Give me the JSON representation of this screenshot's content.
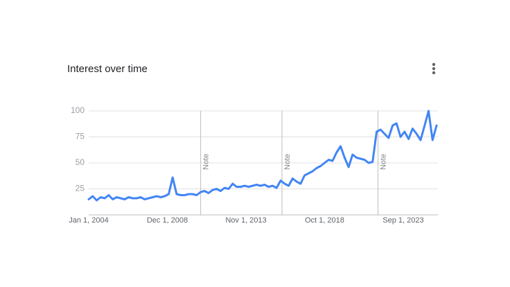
{
  "chart_data": {
    "type": "line",
    "title": "Interest over time",
    "x": [
      "2004-01-01",
      "2004-04-01",
      "2004-07-01",
      "2004-10-01",
      "2005-01-01",
      "2005-04-01",
      "2005-07-01",
      "2005-10-01",
      "2006-01-01",
      "2006-04-01",
      "2006-07-01",
      "2006-10-01",
      "2007-01-01",
      "2007-04-01",
      "2007-07-01",
      "2007-10-01",
      "2008-01-01",
      "2008-04-01",
      "2008-07-01",
      "2008-10-01",
      "2009-01-01",
      "2009-04-01",
      "2009-07-01",
      "2009-10-01",
      "2010-01-01",
      "2010-04-01",
      "2010-07-01",
      "2010-10-01",
      "2011-01-01",
      "2011-04-01",
      "2011-07-01",
      "2011-10-01",
      "2012-01-01",
      "2012-04-01",
      "2012-07-01",
      "2012-10-01",
      "2013-01-01",
      "2013-04-01",
      "2013-07-01",
      "2013-10-01",
      "2014-01-01",
      "2014-04-01",
      "2014-07-01",
      "2014-10-01",
      "2015-01-01",
      "2015-04-01",
      "2015-07-01",
      "2015-10-01",
      "2016-01-01",
      "2016-04-01",
      "2016-07-01",
      "2016-10-01",
      "2017-01-01",
      "2017-04-01",
      "2017-07-01",
      "2017-10-01",
      "2018-01-01",
      "2018-04-01",
      "2018-07-01",
      "2018-10-01",
      "2019-01-01",
      "2019-04-01",
      "2019-07-01",
      "2019-10-01",
      "2020-01-01",
      "2020-04-01",
      "2020-07-01",
      "2020-10-01",
      "2021-01-01",
      "2021-04-01",
      "2021-07-01",
      "2021-10-01",
      "2022-01-01",
      "2022-04-01",
      "2022-07-01",
      "2022-10-01",
      "2023-01-01",
      "2023-04-01",
      "2023-07-01",
      "2023-10-01",
      "2024-01-01",
      "2024-04-01",
      "2024-07-01",
      "2024-10-01",
      "2025-01-01",
      "2025-04-01",
      "2025-07-01",
      "2025-10-01"
    ],
    "series": [
      {
        "color": "#4285f4",
        "values": [
          15,
          18,
          14,
          17,
          16,
          19,
          15,
          17,
          16,
          15,
          17,
          16,
          16,
          17,
          15,
          16,
          17,
          18,
          17,
          18,
          20,
          36,
          20,
          19,
          19,
          20,
          20,
          19,
          22,
          23,
          21,
          24,
          25,
          23,
          26,
          25,
          30,
          27,
          27,
          28,
          27,
          28,
          29,
          28,
          29,
          27,
          28,
          26,
          33,
          30,
          28,
          35,
          32,
          30,
          38,
          40,
          42,
          45,
          47,
          50,
          53,
          52,
          60,
          66,
          55,
          46,
          58,
          55,
          54,
          53,
          50,
          51,
          80,
          82,
          78,
          74,
          86,
          88,
          75,
          80,
          73,
          83,
          78,
          72,
          86,
          100,
          72,
          86
        ]
      }
    ],
    "xlim": [
      "2004-01-01",
      "2025-11-01"
    ],
    "xticks": [
      {
        "value": "2004-01-01",
        "label": "Jan 1, 2004"
      },
      {
        "value": "2008-12-01",
        "label": "Dec 1, 2008"
      },
      {
        "value": "2013-11-01",
        "label": "Nov 1, 2013"
      },
      {
        "value": "2018-10-01",
        "label": "Oct 1, 2018"
      },
      {
        "value": "2023-09-01",
        "label": "Sep 1, 2023"
      }
    ],
    "ylim": [
      0,
      100
    ],
    "yticks": [
      25,
      50,
      75,
      100
    ],
    "grid": true,
    "annotations": [
      {
        "x": "2011-01-01",
        "label": "Note"
      },
      {
        "x": "2016-02-01",
        "label": "Note"
      },
      {
        "x": "2022-02-01",
        "label": "Note"
      }
    ]
  }
}
